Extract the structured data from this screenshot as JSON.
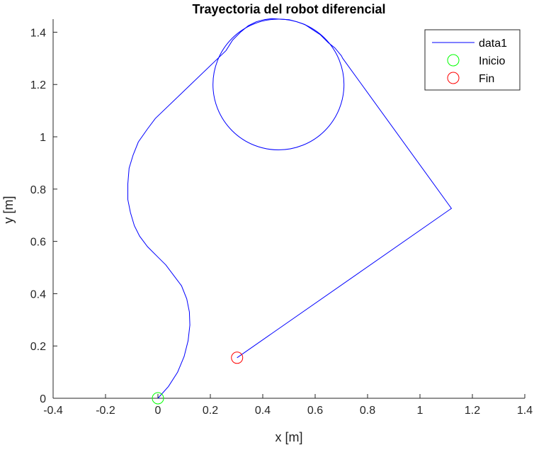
{
  "chart_data": {
    "type": "line",
    "title": "Trayectoria del robot diferencial",
    "xlabel": "x [m]",
    "ylabel": "y [m]",
    "xlim": [
      -0.4,
      1.4
    ],
    "ylim": [
      0,
      1.45
    ],
    "xticks": [
      "-0.4",
      "-0.2",
      "0",
      "0.2",
      "0.4",
      "0.6",
      "0.8",
      "1",
      "1.2",
      "1.4"
    ],
    "yticks": [
      "0",
      "0.2",
      "0.4",
      "0.6",
      "0.8",
      "1",
      "1.2",
      "1.4"
    ],
    "grid": false,
    "legend_position": "top-right",
    "series": [
      {
        "name": "data1",
        "color": "#0000ff",
        "x": [
          0.0,
          0.04,
          0.075,
          0.1,
          0.115,
          0.122,
          0.12,
          0.11,
          0.09,
          0.06,
          0.03,
          0.0,
          -0.04,
          -0.07,
          -0.09,
          -0.105,
          -0.115,
          -0.115,
          -0.11,
          -0.095,
          -0.075,
          -0.04,
          -0.01,
          0.26,
          0.285,
          0.315,
          0.345,
          0.375,
          0.405,
          0.435,
          0.465,
          0.5,
          0.53,
          0.56,
          0.59,
          0.62,
          0.65,
          0.675,
          0.7,
          0.705,
          1.12,
          0.302
        ],
        "y": [
          0.0,
          0.045,
          0.1,
          0.16,
          0.22,
          0.28,
          0.33,
          0.38,
          0.43,
          0.47,
          0.51,
          0.54,
          0.58,
          0.62,
          0.66,
          0.71,
          0.76,
          0.82,
          0.88,
          0.93,
          0.98,
          1.03,
          1.07,
          1.33,
          1.37,
          1.4,
          1.425,
          1.44,
          1.448,
          1.452,
          1.45,
          1.448,
          1.44,
          1.43,
          1.41,
          1.39,
          1.36,
          1.34,
          1.31,
          1.3,
          0.726,
          0.155
        ]
      },
      {
        "name": "",
        "color": "#0000ff",
        "circle": {
          "cx": 0.46,
          "cy": 1.2,
          "r": 0.25
        }
      }
    ],
    "markers": [
      {
        "name": "Inicio",
        "x": 0.0,
        "y": 0.0,
        "color": "#00ff00"
      },
      {
        "name": "Fin",
        "x": 0.302,
        "y": 0.155,
        "color": "#ff0000"
      }
    ],
    "legend": [
      {
        "label": "data1",
        "kind": "line",
        "color": "#0000ff"
      },
      {
        "label": "Inicio",
        "kind": "circle",
        "color": "#00ff00"
      },
      {
        "label": "Fin",
        "kind": "circle",
        "color": "#ff0000"
      }
    ]
  }
}
